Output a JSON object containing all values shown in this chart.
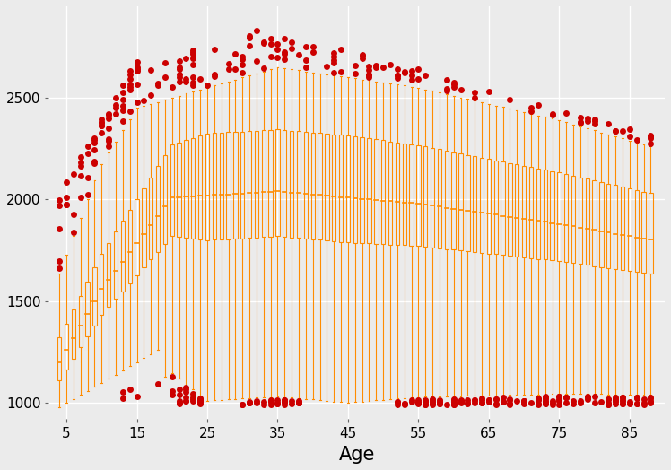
{
  "background_color": "#EBEBEB",
  "grid_color": "#FFFFFF",
  "box_color": "#FF8C00",
  "outlier_color": "#CC0000",
  "outlier_size": 5,
  "xlabel": "Age",
  "xlabel_fontsize": 15,
  "ytick_labels": [
    1000,
    1500,
    2000,
    2500
  ],
  "xtick_labels": [
    5,
    15,
    25,
    35,
    45,
    55,
    65,
    75,
    85
  ],
  "ylim": [
    920,
    2950
  ],
  "xlim": [
    2.5,
    90
  ],
  "age_min": 4,
  "age_max": 88,
  "box_width": 0.55,
  "lw": 0.8
}
